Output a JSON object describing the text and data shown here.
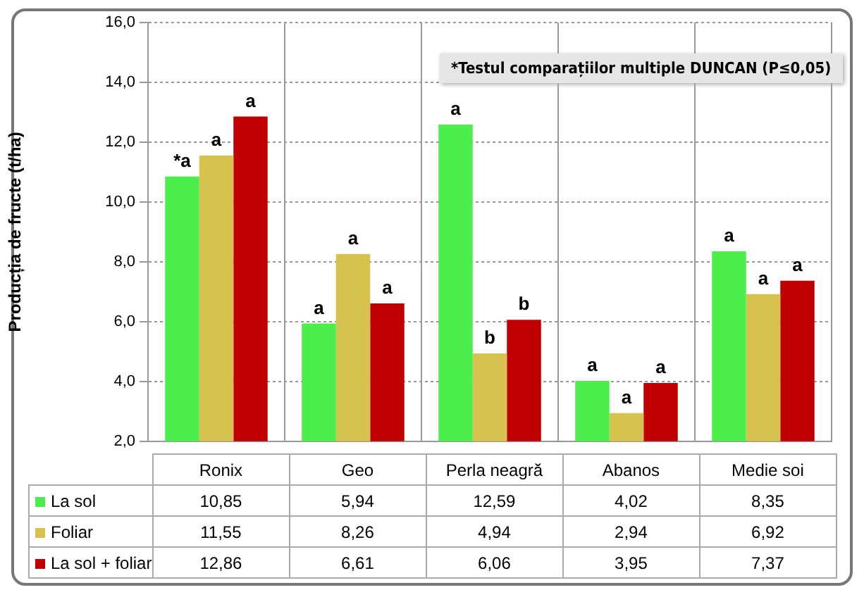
{
  "chart_data": {
    "type": "bar",
    "ylabel": "Producția de fructe (t/ha)",
    "categories": [
      "Ronix",
      "Geo",
      "Perla neagră",
      "Abanos",
      "Medie soi"
    ],
    "series": [
      {
        "name": "La sol",
        "color": "#4cee4c",
        "values": [
          10.85,
          5.94,
          12.59,
          4.02,
          8.35
        ],
        "value_labels": [
          "10,85",
          "5,94",
          "12,59",
          "4,02",
          "8,35"
        ]
      },
      {
        "name": "Foliar",
        "color": "#d6c24c",
        "values": [
          11.55,
          8.26,
          4.94,
          2.94,
          6.92
        ],
        "value_labels": [
          "11,55",
          "8,26",
          "4,94",
          "2,94",
          "6,92"
        ]
      },
      {
        "name": "La sol + foliar",
        "color": "#c00000",
        "values": [
          12.86,
          6.61,
          6.06,
          3.95,
          7.37
        ],
        "value_labels": [
          "12,86",
          "6,61",
          "6,06",
          "3,95",
          "7,37"
        ]
      }
    ],
    "ylim": [
      2,
      16
    ],
    "yticks": [
      {
        "value": 2,
        "label": "2,0"
      },
      {
        "value": 4,
        "label": "4,0"
      },
      {
        "value": 6,
        "label": "6,0"
      },
      {
        "value": 8,
        "label": "8,0"
      },
      {
        "value": 10,
        "label": "10,0"
      },
      {
        "value": 12,
        "label": "12,0"
      },
      {
        "value": 14,
        "label": "14,0"
      },
      {
        "value": 16,
        "label": "16,0"
      }
    ],
    "grid": true,
    "legend": "bottom",
    "annotations": [
      "*Testul comparațiilor multiple DUNCAN (P≤0,05)",
      "*a",
      "a",
      "a",
      "a",
      "a",
      "a",
      "a",
      "b",
      "b",
      "a",
      "a",
      "a",
      "a",
      "a",
      "a"
    ]
  }
}
